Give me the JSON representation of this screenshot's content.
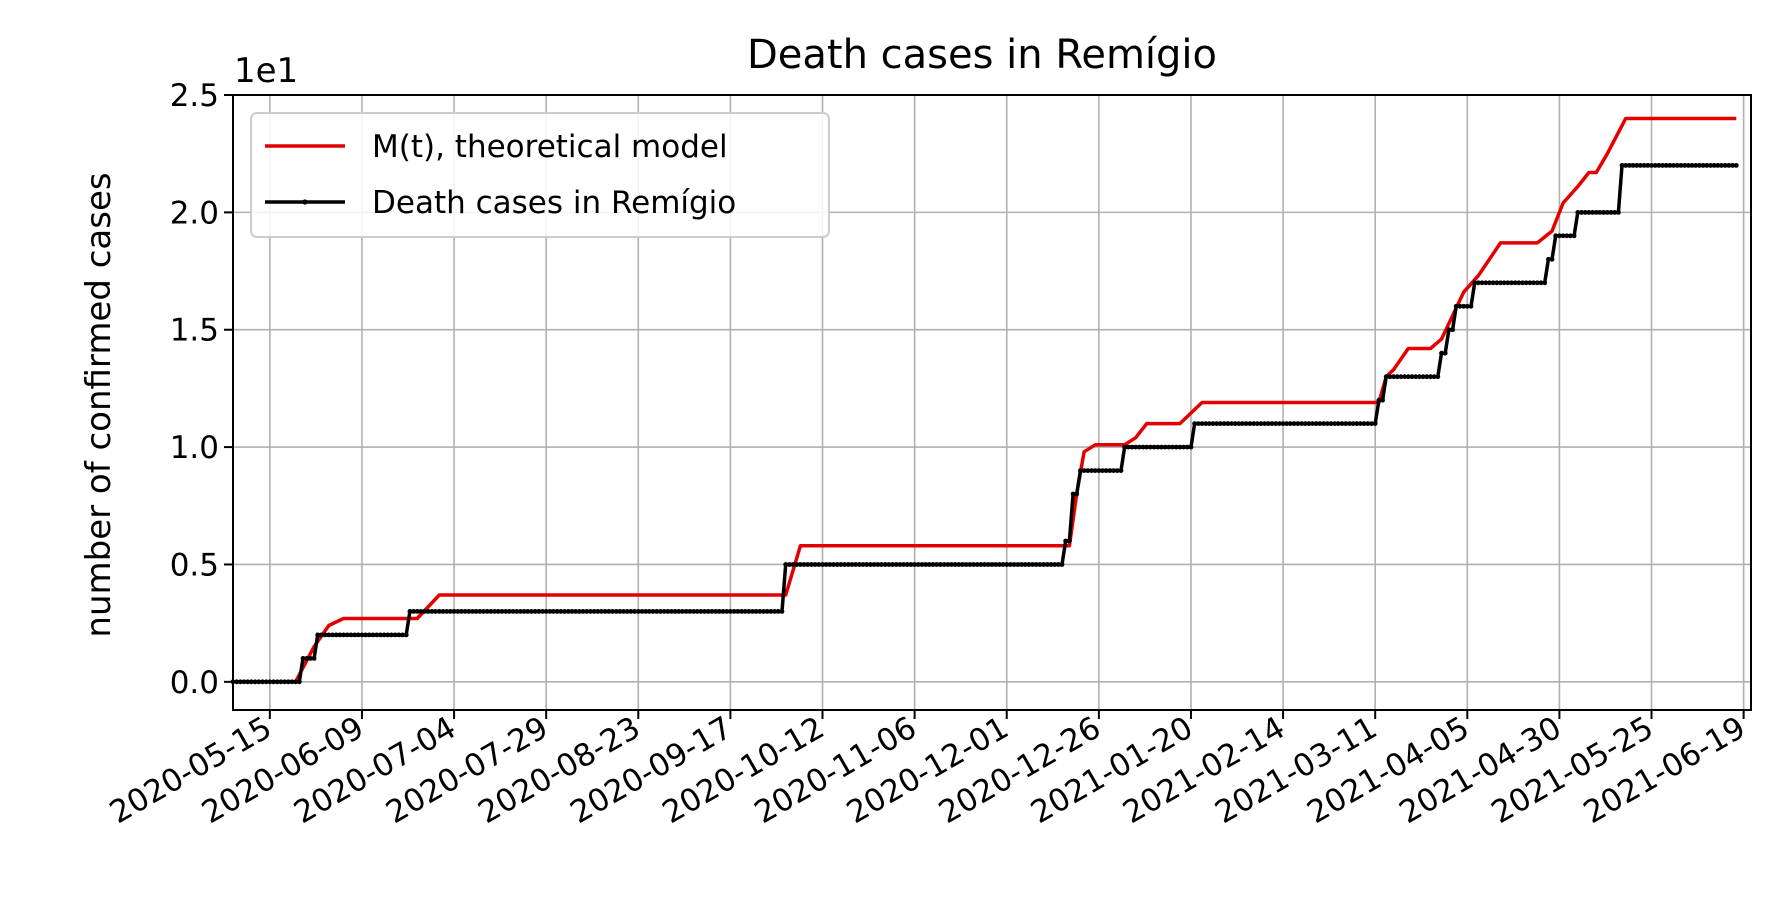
{
  "chart_data": {
    "type": "line",
    "title": "Death cases in Remígio",
    "xlabel": "",
    "ylabel": "number of confirmed cases",
    "y_offset_label": "1e1",
    "xlim": [
      "2020-05-05",
      "2021-06-21"
    ],
    "ylim": [
      -0.12,
      2.5
    ],
    "x_ticks": [
      "2020-05-15",
      "2020-06-09",
      "2020-07-04",
      "2020-07-29",
      "2020-08-23",
      "2020-09-17",
      "2020-10-12",
      "2020-11-06",
      "2020-12-01",
      "2020-12-26",
      "2021-01-20",
      "2021-02-14",
      "2021-03-11",
      "2021-04-05",
      "2021-04-30",
      "2021-05-25",
      "2021-06-19"
    ],
    "y_ticks": [
      "0.0",
      "0.5",
      "1.0",
      "1.5",
      "2.0",
      "2.5"
    ],
    "grid": true,
    "legend": "top-left",
    "series": [
      {
        "name": "M(t), theoretical model",
        "color": "#e50000",
        "x": [
          "2020-05-05",
          "2020-05-22",
          "2020-05-27",
          "2020-05-31",
          "2020-06-04",
          "2020-06-24",
          "2020-06-30",
          "2020-10-02",
          "2020-10-06",
          "2020-12-18",
          "2020-12-20",
          "2020-12-22",
          "2020-12-25",
          "2021-01-02",
          "2021-01-05",
          "2021-01-08",
          "2021-01-17",
          "2021-01-23",
          "2021-03-12",
          "2021-03-14",
          "2021-03-16",
          "2021-03-20",
          "2021-03-26",
          "2021-03-29",
          "2021-04-01",
          "2021-04-04",
          "2021-04-08",
          "2021-04-14",
          "2021-04-24",
          "2021-04-28",
          "2021-05-01",
          "2021-05-05",
          "2021-05-08",
          "2021-05-10",
          "2021-05-13",
          "2021-05-18",
          "2021-06-17"
        ],
        "values": [
          0.0,
          0.0,
          0.15,
          0.24,
          0.27,
          0.27,
          0.37,
          0.37,
          0.58,
          0.58,
          0.8,
          0.98,
          1.01,
          1.01,
          1.04,
          1.1,
          1.1,
          1.19,
          1.19,
          1.3,
          1.33,
          1.42,
          1.42,
          1.46,
          1.56,
          1.66,
          1.73,
          1.87,
          1.87,
          1.92,
          2.04,
          2.11,
          2.17,
          2.17,
          2.25,
          2.4,
          2.4
        ]
      },
      {
        "name": "Death cases in Remígio",
        "color": "#000000",
        "step_dates": [
          "2020-05-24",
          "2020-05-28",
          "2020-06-22",
          "2020-10-02",
          "2020-12-17",
          "2020-12-19",
          "2020-12-21",
          "2021-01-02",
          "2021-01-21",
          "2021-03-12",
          "2021-03-14",
          "2021-03-29",
          "2021-03-31",
          "2021-04-02",
          "2021-04-07",
          "2021-04-27",
          "2021-04-29",
          "2021-05-05",
          "2021-05-17"
        ],
        "step_values": [
          1,
          2,
          3,
          5,
          6,
          8,
          9,
          10,
          11,
          12,
          13,
          14,
          15,
          16,
          17,
          18,
          19,
          20,
          22
        ],
        "x_start": "2020-05-05",
        "x_end": "2021-06-17",
        "start_value": 0.0,
        "scale": "1e1"
      }
    ]
  }
}
